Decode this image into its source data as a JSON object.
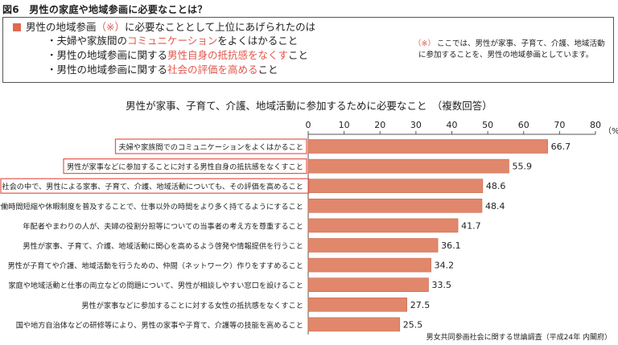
{
  "figure_title": "図6　男性の家庭や地域参画に必要なことは？",
  "summary": {
    "lead_pre": "男性の地域参画",
    "lead_note_mark": "（※）",
    "lead_post": "に必要なこととして上位にあげられたのは",
    "items": [
      {
        "pre": "・夫婦や家族間の",
        "em": "コミュニケーション",
        "post": "をよくはかること"
      },
      {
        "pre": "・男性の地域参画に関する",
        "em": "男性自身の抵抗感をなくす",
        "post": "こと"
      },
      {
        "pre": "・男性の地域参画に関する",
        "em": "社会の評価を高める",
        "post": "こと"
      }
    ]
  },
  "note": {
    "mark": "（※）",
    "text_line1": "ここでは、男性が家事、子育て、介護、地域活動",
    "text_line2": "に参加することを、男性の地域参画としています。"
  },
  "source": "男女共同参画社会に関する世論調査（平成24年 内閣府）",
  "colors": {
    "bar": "#e1876b",
    "bar_stroke": "#c9694c",
    "highlight_box": "#e2574c",
    "accent": "#e2574c",
    "axis": "#555555",
    "text": "#222222"
  },
  "chart_data": {
    "type": "bar",
    "orientation": "horizontal",
    "title": "男性が家事、子育て、介護、地域活動に参加するために必要なこと　（複数回答）",
    "unit_label": "（%）",
    "xlim": [
      0,
      80
    ],
    "ticks": [
      0,
      10,
      20,
      30,
      40,
      50,
      60,
      70,
      80
    ],
    "grid": false,
    "categories": [
      "夫婦や家族間でのコミュニケーションをよくはかること",
      "男性が家事などに参加することに対する男性自身の抵抗感をなくすこと",
      "社会の中で、男性による家事、子育て、介護、地域活動についても、その評価を高めること",
      "労働時間短縮や休暇制度を普及することで、仕事以外の時間をより多く持てるようにすること",
      "年配者やまわりの人が、夫婦の役割分担等についての当事者の考え方を尊重すること",
      "男性が家事、子育て、介護、地域活動に関心を高めるよう啓発や情報提供を行うこと",
      "男性が子育てや介護、地域活動を行うための、仲間（ネットワーク）作りをすすめること",
      "家庭や地域活動と仕事の両立などの問題について、男性が相談しやすい窓口を設けること",
      "男性が家事などに参加することに対する女性の抵抗感をなくすこと",
      "国や地方自治体などの研修等により、男性の家事や子育て、介護等の技能を高めること"
    ],
    "values": [
      66.7,
      55.9,
      48.6,
      48.4,
      41.7,
      36.1,
      34.2,
      33.5,
      27.5,
      25.5
    ],
    "value_labels": [
      "66.7",
      "55.9",
      "48.6",
      "48.4",
      "41.7",
      "36.1",
      "34.2",
      "33.5",
      "27.5",
      "25.5"
    ],
    "highlighted": [
      true,
      true,
      true,
      false,
      false,
      false,
      false,
      false,
      false,
      false
    ]
  }
}
